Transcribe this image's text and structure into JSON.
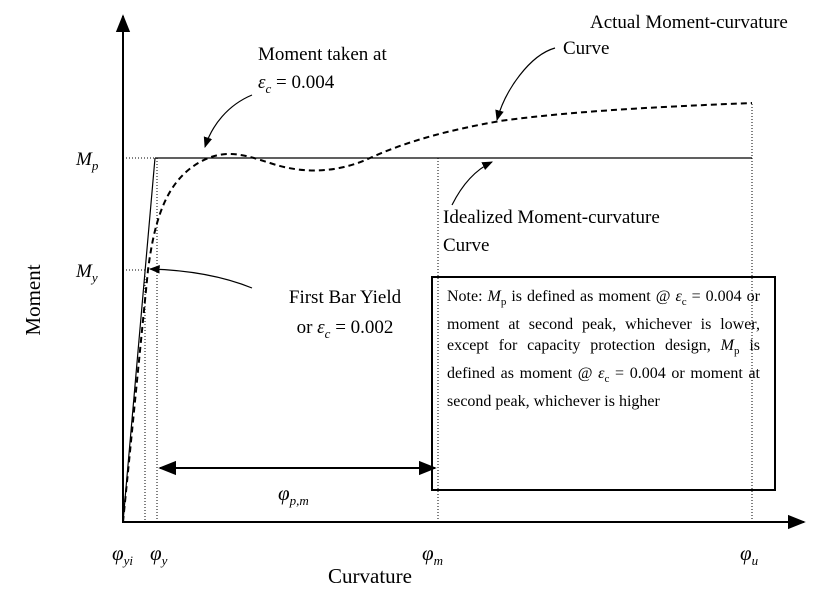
{
  "axes": {
    "x_label": "Curvature",
    "y_label": "Moment"
  },
  "y_labels": [
    {
      "sym": "M",
      "sub": "p"
    },
    {
      "sym": "M",
      "sub": "y"
    }
  ],
  "x_labels": [
    {
      "sym": "φ",
      "sub": "yi"
    },
    {
      "sym": "φ",
      "sub": "y"
    },
    {
      "sym": "φ",
      "sub": "m"
    },
    {
      "sym": "φ",
      "sub": "u"
    }
  ],
  "span_label": {
    "sym": "φ",
    "sub": "p,m"
  },
  "annotations": [
    {
      "lines": [
        [
          {
            "text": "Moment taken at"
          }
        ],
        [
          {
            "sym": "ε",
            "sub": "c"
          },
          {
            "text": " = 0.004"
          }
        ]
      ]
    },
    {
      "lines": [
        [
          {
            "text": "Actual Moment-curvature"
          }
        ],
        [
          {
            "text": "Curve"
          }
        ]
      ]
    },
    {
      "lines": [
        [
          {
            "text": "Idealized Moment-curvature"
          }
        ],
        [
          {
            "text": "Curve"
          }
        ]
      ]
    },
    {
      "lines": [
        [
          {
            "text": "First Bar Yield"
          }
        ],
        [
          {
            "text": "or "
          },
          {
            "sym": "ε",
            "sub": "c"
          },
          {
            "text": " = 0.002"
          }
        ]
      ]
    }
  ],
  "note": [
    {
      "text": "Note: "
    },
    {
      "sym": "M",
      "sub": "p"
    },
    {
      "text": " is defined as moment @ "
    },
    {
      "sym": "ε",
      "sub": "c"
    },
    {
      "text": " = 0.004 or moment at second peak, whichever is lower, except for capacity protection design, "
    },
    {
      "sym": "M",
      "sub": "p"
    },
    {
      "text": " is defined as moment @ "
    },
    {
      "sym": "ε",
      "sub": "c"
    },
    {
      "text": " = 0.004 or moment at second peak, whichever is higher"
    }
  ]
}
